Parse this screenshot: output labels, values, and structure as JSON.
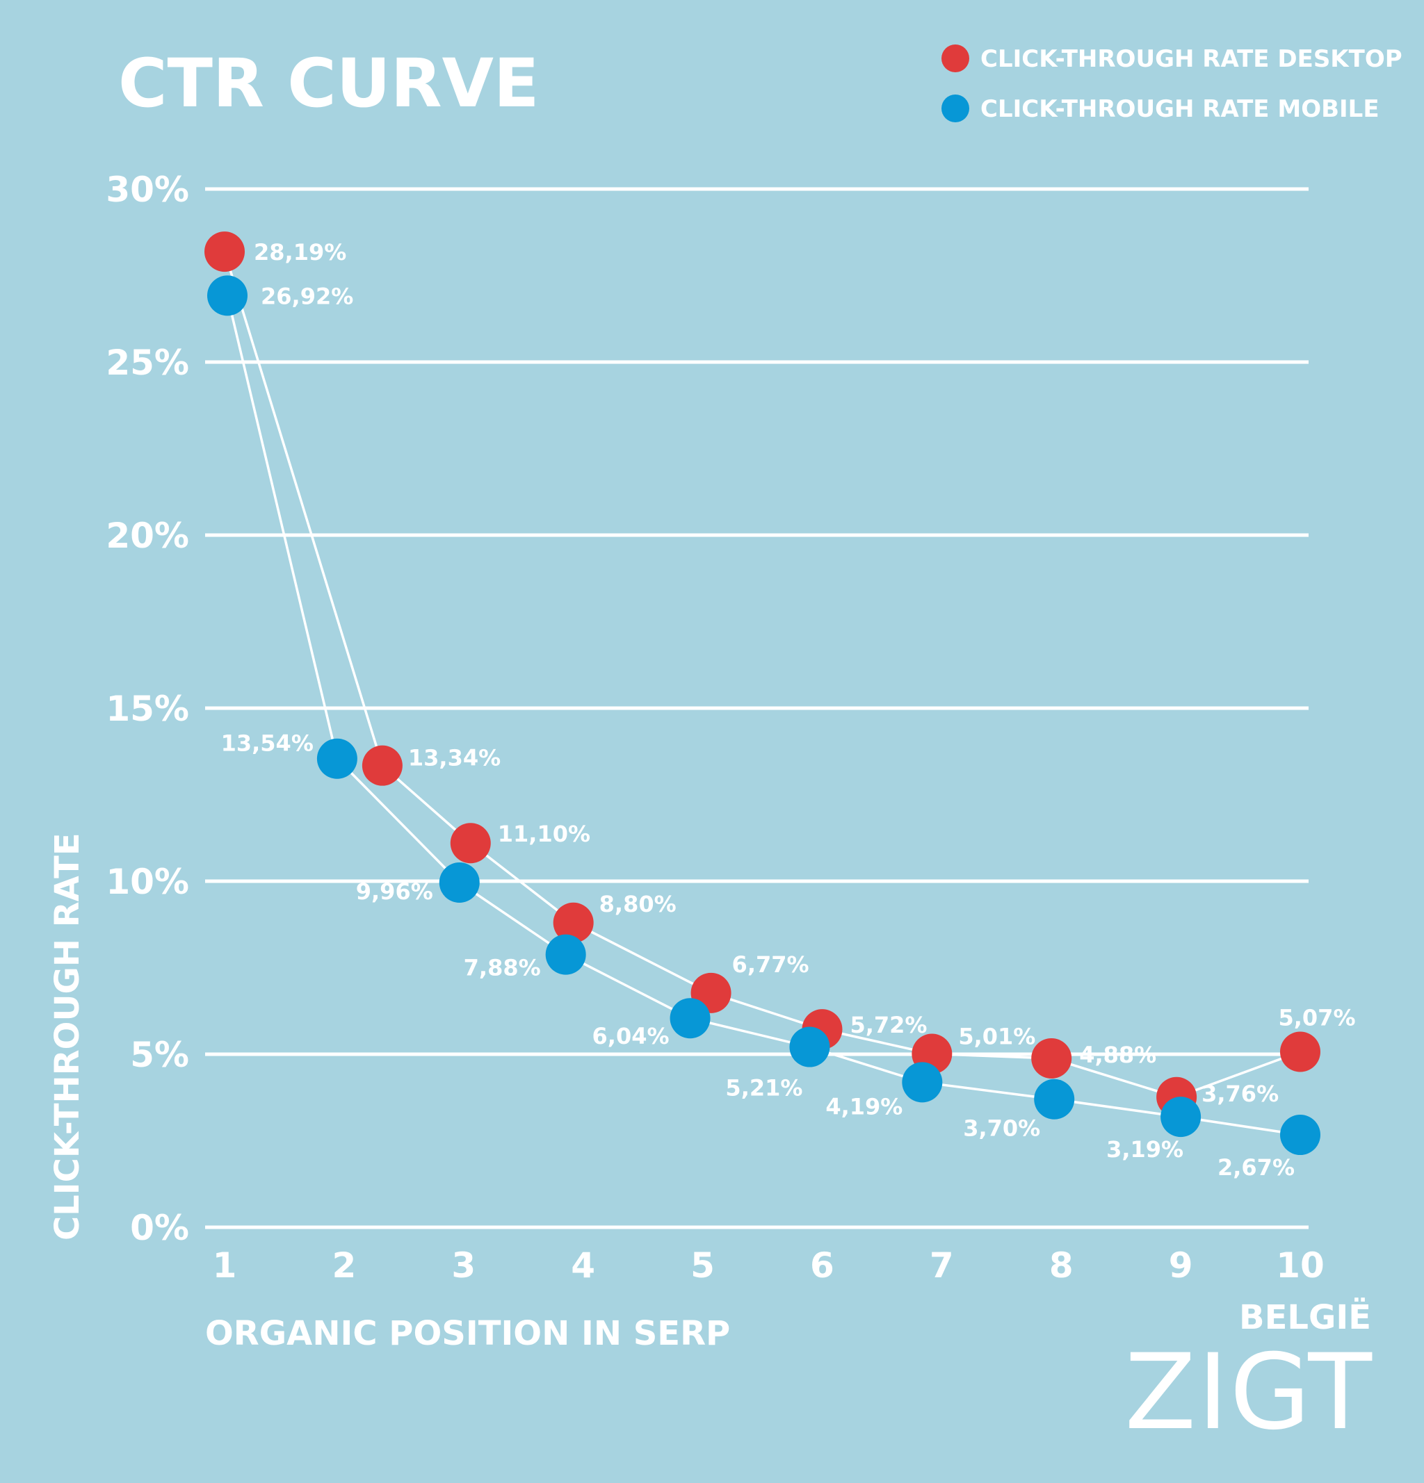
{
  "chart_data": {
    "type": "line",
    "title": "CTR CURVE",
    "xlabel": "ORGANIC POSITION IN SERP",
    "ylabel": "CLICK-THROUGH RATE",
    "x": [
      1,
      2,
      3,
      4,
      5,
      6,
      7,
      8,
      9,
      10
    ],
    "x_tick_labels": [
      "1",
      "2",
      "3",
      "4",
      "5",
      "6",
      "7",
      "8",
      "9",
      "10"
    ],
    "ylim": [
      0,
      30
    ],
    "y_ticks": [
      0,
      5,
      10,
      15,
      20,
      25,
      30
    ],
    "y_tick_labels": [
      "0%",
      "5%",
      "10%",
      "15%",
      "20%",
      "25%",
      "30%"
    ],
    "grid": true,
    "legend_position": "top-right",
    "series": [
      {
        "name": "CLICK-THROUGH RATE DESKTOP",
        "color": "#e03b3b",
        "values": [
          28.19,
          13.34,
          11.1,
          8.8,
          6.77,
          5.72,
          5.01,
          4.88,
          3.76,
          5.07
        ],
        "labels": [
          "28,19%",
          "13,34%",
          "11,10%",
          "8,80%",
          "6,77%",
          "5,72%",
          "5,01%",
          "4,88%",
          "3,76%",
          "5,07%"
        ]
      },
      {
        "name": "CLICK-THROUGH RATE MOBILE",
        "color": "#0797d6",
        "values": [
          26.92,
          13.54,
          9.96,
          7.88,
          6.04,
          5.21,
          4.19,
          3.7,
          3.19,
          2.67
        ],
        "labels": [
          "26,92%",
          "13,54%",
          "9,96%",
          "7,88%",
          "6,04%",
          "5,21%",
          "4,19%",
          "3,70%",
          "3,19%",
          "2,67%"
        ]
      }
    ]
  },
  "branding": {
    "region": "BELGIË",
    "logo": "ZIGT"
  },
  "colors": {
    "background": "#a7d3e0",
    "gridline": "#ffffff",
    "text": "#ffffff"
  }
}
